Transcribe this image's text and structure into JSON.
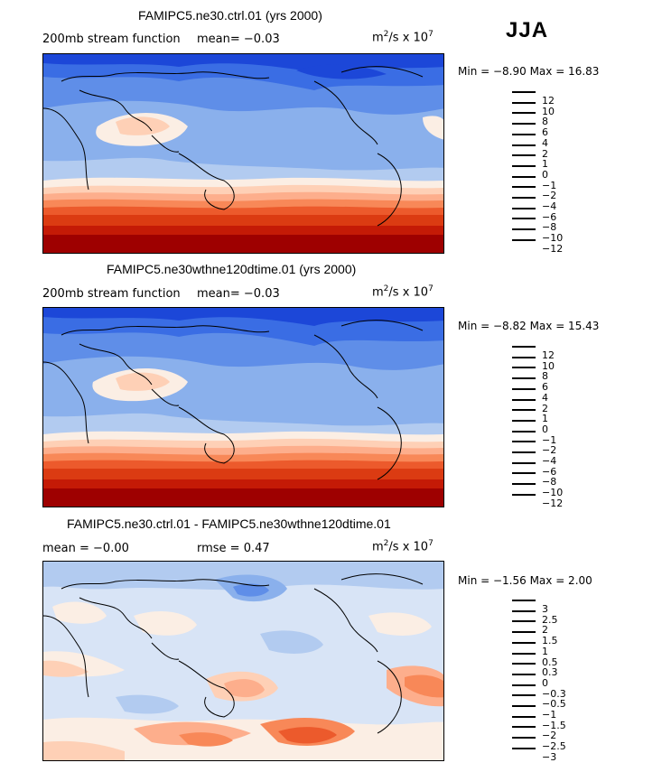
{
  "season": "JJA",
  "panels": [
    {
      "title": "FAMIPC5.ne30.ctrl.01 (yrs 2000)",
      "left_label": "200mb stream function",
      "stat": "mean=  −0.03",
      "units_base": "m",
      "units_exp": "2",
      "units_mid": "/s x 10",
      "units_exp2": "7",
      "minmax": "Min = −8.90 Max = 16.83",
      "levels": [
        "12",
        "10",
        "8",
        "6",
        "4",
        "2",
        "1",
        "0",
        "−1",
        "−2",
        "−4",
        "−6",
        "−8",
        "−10",
        "−12"
      ],
      "colors": [
        "#9e0000",
        "#c41a06",
        "#db3b12",
        "#ec5a2c",
        "#f88858",
        "#fdae8c",
        "#fed0b6",
        "#fbeee4",
        "#d8e4f6",
        "#b2cbf0",
        "#8ab0ec",
        "#5f8ee8",
        "#3a6de4",
        "#1c47d8",
        "#0c1aa4"
      ]
    },
    {
      "title": "FAMIPC5.ne30wthne120dtime.01 (yrs 2000)",
      "left_label": "200mb stream function",
      "stat": "mean=  −0.03",
      "units_base": "m",
      "units_exp": "2",
      "units_mid": "/s x 10",
      "units_exp2": "7",
      "minmax": "Min = −8.82 Max = 15.43",
      "levels": [
        "12",
        "10",
        "8",
        "6",
        "4",
        "2",
        "1",
        "0",
        "−1",
        "−2",
        "−4",
        "−6",
        "−8",
        "−10",
        "−12"
      ],
      "colors": [
        "#9e0000",
        "#c41a06",
        "#db3b12",
        "#ec5a2c",
        "#f88858",
        "#fdae8c",
        "#fed0b6",
        "#fbeee4",
        "#d8e4f6",
        "#b2cbf0",
        "#8ab0ec",
        "#5f8ee8",
        "#3a6de4",
        "#1c47d8",
        "#0c1aa4"
      ]
    },
    {
      "title": "FAMIPC5.ne30.ctrl.01 - FAMIPC5.ne30wthne120dtime.01",
      "left_label": "mean =  −0.00",
      "stat": "rmse =   0.47",
      "units_base": "m",
      "units_exp": "2",
      "units_mid": "/s x 10",
      "units_exp2": "7",
      "minmax": "Min = −1.56 Max =  2.00",
      "levels": [
        "3",
        "2.5",
        "2",
        "1.5",
        "1",
        "0.5",
        "0.3",
        "0",
        "−0.3",
        "−0.5",
        "−1",
        "−1.5",
        "−2",
        "−2.5",
        "−3"
      ],
      "colors": [
        "#9e0000",
        "#c41a06",
        "#db3b12",
        "#ec5a2c",
        "#f88858",
        "#fdae8c",
        "#fed0b6",
        "#fbeee4",
        "#d8e4f6",
        "#b2cbf0",
        "#8ab0ec",
        "#5f8ee8",
        "#3a6de4",
        "#1c47d8",
        "#0c1aa4"
      ]
    }
  ]
}
